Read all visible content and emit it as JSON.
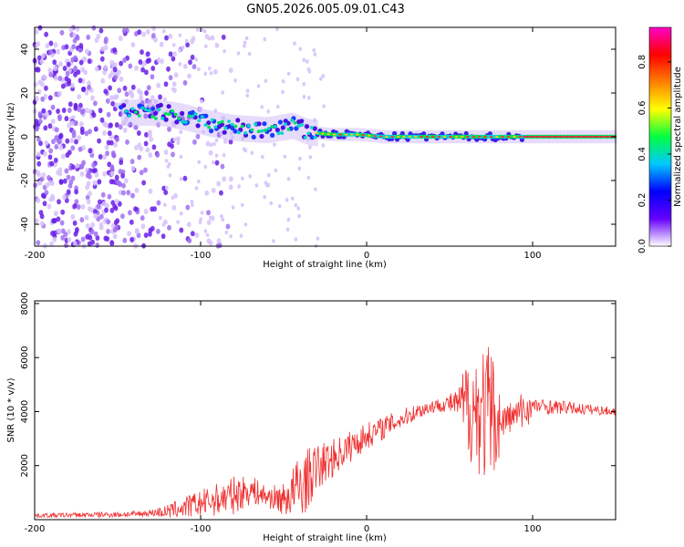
{
  "title": "GN05.2026.005.09.01.C43",
  "colors": {
    "snr_line": "#f03030",
    "frame": "#000000",
    "spectrum_track": "#00e05a",
    "spectrum_core": "#e8233a"
  },
  "chart_data": [
    {
      "type": "heatmap",
      "name": "spectrogram",
      "xlabel": "Height of straight line (km)",
      "ylabel": "Frequency (Hz)",
      "xlim": [
        -200,
        150
      ],
      "ylim": [
        -50,
        50
      ],
      "xticks": [
        -200,
        -100,
        0,
        100
      ],
      "xtick_labels": [
        "-200",
        "-100",
        "0",
        "100"
      ],
      "yticks": [
        -40,
        -20,
        0,
        20,
        40
      ],
      "ytick_labels": [
        "-40",
        "-20",
        "0",
        "20",
        "40"
      ],
      "center_track": {
        "x": [
          -145,
          -125,
          -110,
          -95,
          -80,
          -60,
          -45,
          -35,
          -20,
          -5,
          10,
          40,
          70,
          95,
          150
        ],
        "freq": [
          11,
          11,
          9,
          6,
          4,
          3,
          5,
          2,
          1,
          1,
          0,
          0,
          0,
          0,
          0
        ]
      },
      "colorbar": {
        "label": "Normalized spectral amplitude",
        "range": [
          0,
          0.95
        ],
        "ticks": [
          0.0,
          0.2,
          0.4,
          0.6,
          0.8
        ],
        "tick_labels": [
          "0.0",
          "0.2",
          "0.4",
          "0.6",
          "0.8"
        ],
        "colormap": [
          "#ffffff",
          "#6600ff",
          "#0000ff",
          "#00c8ff",
          "#00ff40",
          "#ffff00",
          "#ff8000",
          "#ff0000",
          "#ff00c8"
        ]
      }
    },
    {
      "type": "line",
      "name": "snr",
      "xlabel": "Height of straight line (km)",
      "ylabel": "SNR (10 * v/v)",
      "xlim": [
        -200,
        150
      ],
      "ylim": [
        0,
        8100
      ],
      "xticks": [
        -200,
        -100,
        0,
        100
      ],
      "xtick_labels": [
        "-200",
        "-100",
        "0",
        "100"
      ],
      "yticks": [
        2000,
        4000,
        6000,
        8000
      ],
      "ytick_labels": [
        "2000",
        "4000",
        "6000",
        "8000"
      ],
      "trend": {
        "x": [
          -200,
          -140,
          -120,
          -100,
          -80,
          -70,
          -60,
          -50,
          -40,
          -30,
          -20,
          -10,
          0,
          10,
          20,
          30,
          40,
          50,
          55,
          60,
          70,
          75,
          80,
          90,
          100,
          120,
          150
        ],
        "y": [
          150,
          200,
          300,
          600,
          900,
          1100,
          850,
          750,
          1200,
          1900,
          2300,
          2700,
          3100,
          3400,
          3700,
          4000,
          4200,
          4300,
          4300,
          4200,
          4000,
          3800,
          3600,
          3900,
          4200,
          4150,
          4000
        ]
      },
      "noise": {
        "x": [
          -200,
          -130,
          -110,
          -80,
          -60,
          -50,
          -40,
          -30,
          -20,
          0,
          30,
          45,
          55,
          60,
          65,
          70,
          75,
          78,
          82,
          90,
          95,
          100,
          150
        ],
        "amp": [
          80,
          120,
          400,
          700,
          400,
          600,
          1300,
          900,
          700,
          500,
          300,
          250,
          500,
          1800,
          2200,
          2600,
          2800,
          1800,
          700,
          500,
          900,
          300,
          150
        ]
      }
    }
  ]
}
